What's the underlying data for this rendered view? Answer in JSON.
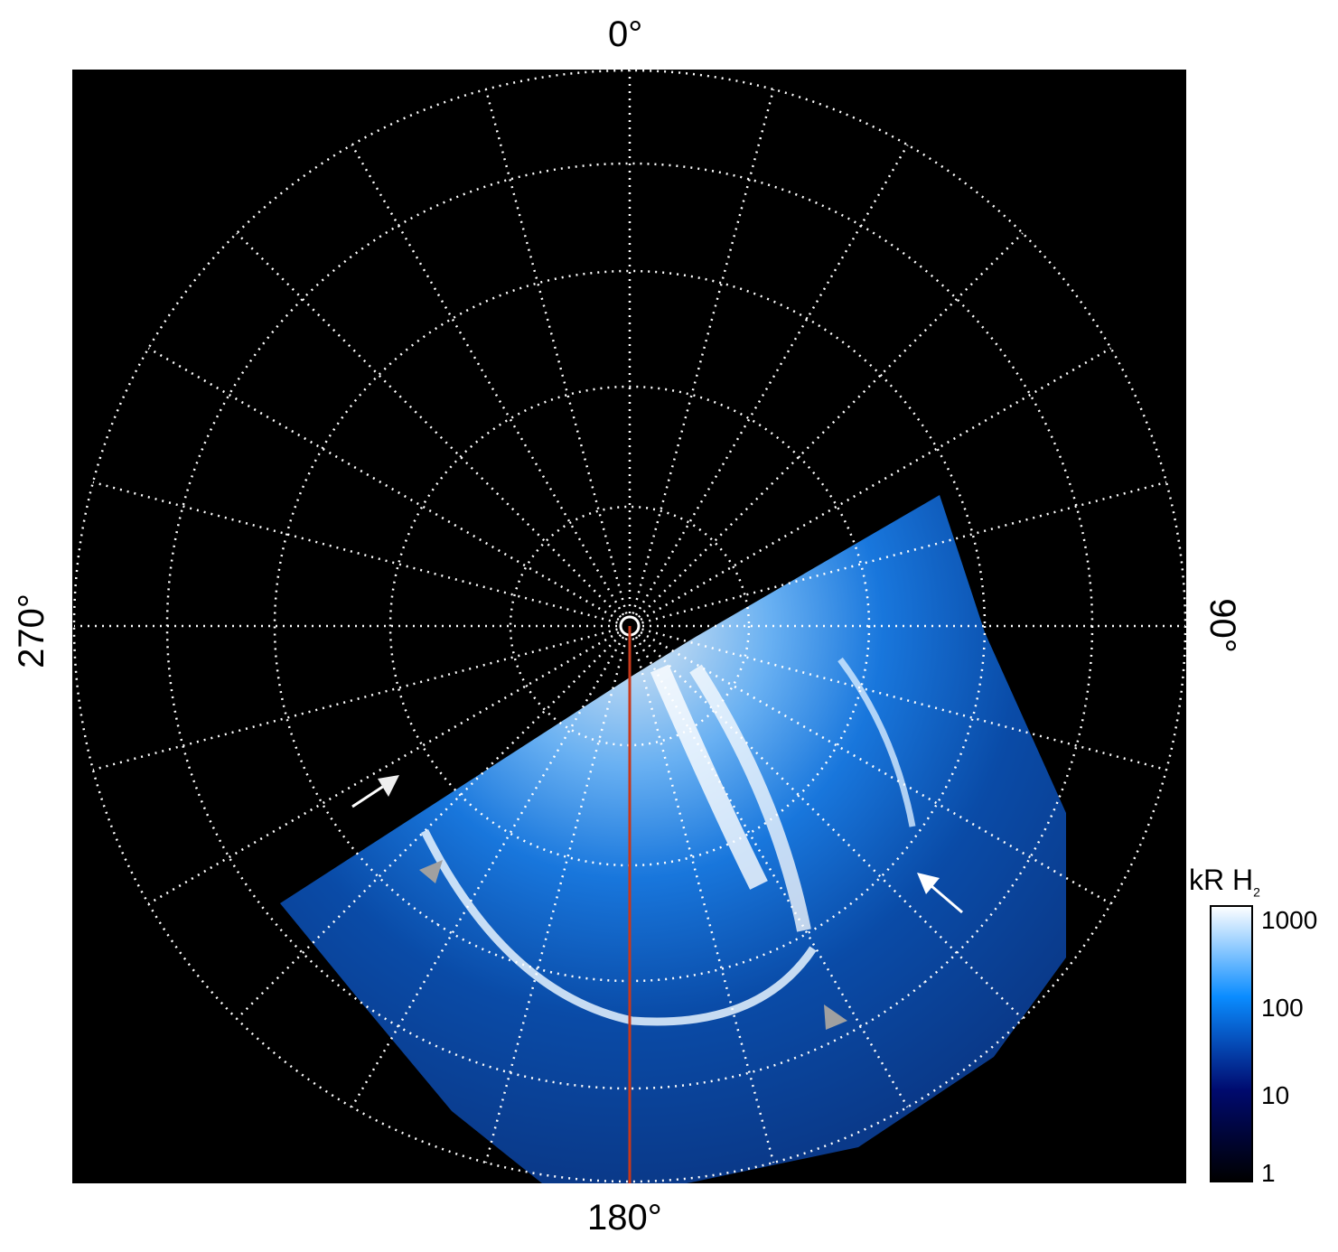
{
  "labels": {
    "top": "0°",
    "bottom": "180°",
    "left": "270°",
    "right": "90°"
  },
  "colorbar": {
    "title": "kR H",
    "title_sub": "2",
    "ticks": [
      "1000",
      "100",
      "10",
      "1"
    ],
    "scale": "log",
    "range": [
      1,
      1000
    ],
    "colors": [
      "#000000",
      "#000a6e",
      "#0a8cff",
      "#ffffff"
    ]
  },
  "colors": {
    "background": "#000000",
    "grid": "#ffffff",
    "meridian_line": "#c8381a",
    "arrow_white": "#ffffff",
    "arrow_gray": "#a0a0a0"
  }
}
